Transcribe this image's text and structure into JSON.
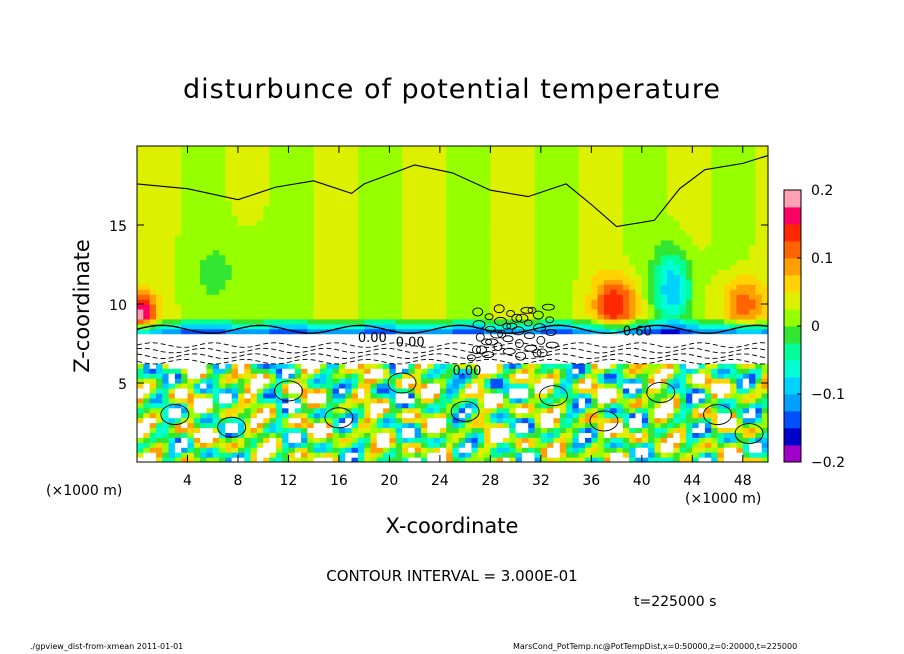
{
  "chart_data": {
    "type": "heatmap",
    "title": "disturbunce of potential temperature",
    "xlabel": "X-coordinate",
    "ylabel": "Z-coordinate",
    "x_unit": "(×1000 m)",
    "xlim": [
      0,
      50
    ],
    "ylim": [
      0,
      20
    ],
    "x_ticks": [
      4,
      8,
      12,
      16,
      20,
      24,
      28,
      32,
      36,
      40,
      44,
      48
    ],
    "y_ticks": [
      5,
      10,
      15
    ],
    "colorbar": {
      "range": [
        -0.2,
        0.2
      ],
      "tick_values": [
        0.2,
        0.1,
        0,
        -0.1,
        -0.2
      ],
      "tick_labels": [
        "0.2",
        "0.1",
        "0",
        "−0.1",
        "−0.2"
      ],
      "colors": [
        "#a000c8",
        "#0000c8",
        "#0050ff",
        "#00a0ff",
        "#00d2ff",
        "#00ffd2",
        "#00ff96",
        "#32e632",
        "#96ff00",
        "#dcf000",
        "#ffd200",
        "#ffa000",
        "#ff6400",
        "#ff2800",
        "#ff0064",
        "#ffa0b4"
      ]
    },
    "contour_interval": "CONTOUR INTERVAL = 3.000E-01",
    "contour_labels": [
      "0.00",
      "0.00",
      "0.00",
      "0.60"
    ],
    "time_label": "t=225000 s",
    "footer_left": "./gpview_dist-from-xmean  2011-01-01",
    "footer_right": "MarsCond_PotTemp.nc@PotTempDist,x=0:50000,z=0:20000,t=225000"
  }
}
